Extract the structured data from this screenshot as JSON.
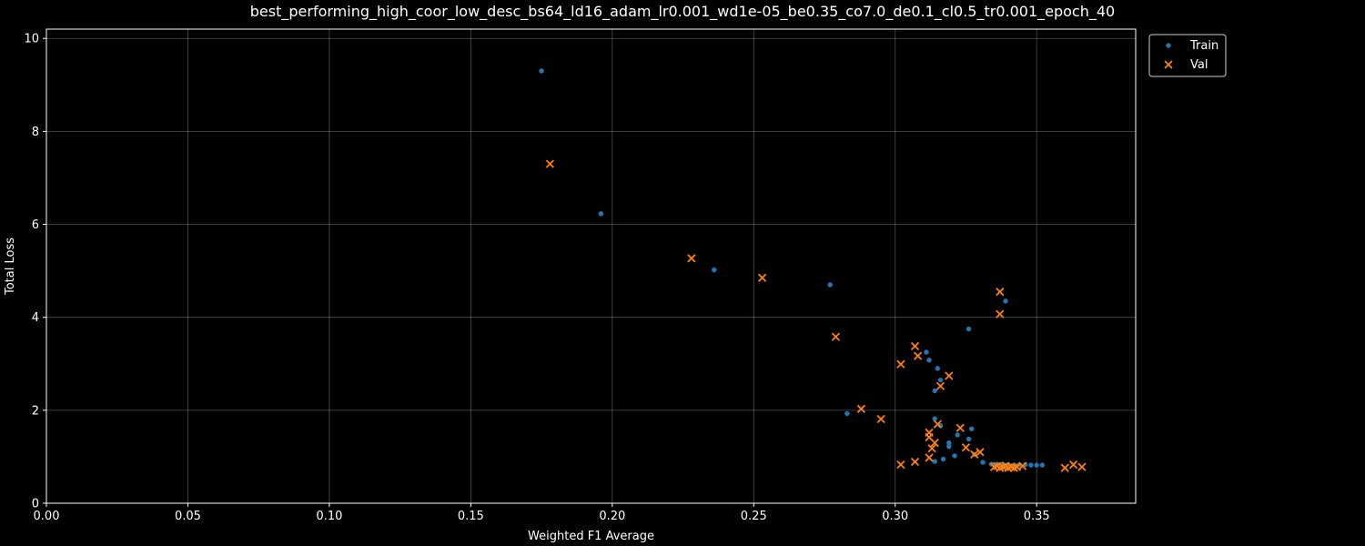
{
  "chart_data": {
    "type": "scatter",
    "title": "best_performing_high_coor_low_desc_bs64_ld16_adam_lr0.001_wd1e-05_be0.35_co7.0_de0.1_cl0.5_tr0.001_epoch_40",
    "xlabel": "Weighted F1 Average",
    "ylabel": "Total Loss",
    "xlim": [
      0.0,
      0.385
    ],
    "ylim": [
      0,
      10.2
    ],
    "x_ticks": [
      0.0,
      0.05,
      0.1,
      0.15,
      0.2,
      0.25,
      0.3,
      0.35
    ],
    "x_tick_labels": [
      "0.00",
      "0.05",
      "0.10",
      "0.15",
      "0.20",
      "0.25",
      "0.30",
      "0.35"
    ],
    "y_ticks": [
      0,
      2,
      4,
      6,
      8,
      10
    ],
    "y_tick_labels": [
      "0",
      "2",
      "4",
      "6",
      "8",
      "10"
    ],
    "grid": true,
    "legend_position": "outside-top-right",
    "background": "#000000",
    "series": [
      {
        "name": "Train",
        "marker": "dot",
        "color": "#1f77b4",
        "points": [
          [
            0.175,
            9.3
          ],
          [
            0.196,
            6.23
          ],
          [
            0.236,
            5.02
          ],
          [
            0.277,
            4.7
          ],
          [
            0.283,
            1.93
          ],
          [
            0.339,
            4.35
          ],
          [
            0.326,
            3.75
          ],
          [
            0.311,
            3.25
          ],
          [
            0.312,
            3.08
          ],
          [
            0.315,
            2.9
          ],
          [
            0.316,
            2.65
          ],
          [
            0.314,
            2.42
          ],
          [
            0.314,
            1.82
          ],
          [
            0.316,
            1.67
          ],
          [
            0.322,
            1.47
          ],
          [
            0.327,
            1.6
          ],
          [
            0.326,
            1.38
          ],
          [
            0.319,
            1.3
          ],
          [
            0.319,
            1.22
          ],
          [
            0.321,
            1.02
          ],
          [
            0.317,
            0.95
          ],
          [
            0.314,
            0.9
          ],
          [
            0.328,
            1.05
          ],
          [
            0.331,
            0.88
          ],
          [
            0.334,
            0.84
          ],
          [
            0.336,
            0.84
          ],
          [
            0.338,
            0.84
          ],
          [
            0.34,
            0.83
          ],
          [
            0.342,
            0.82
          ],
          [
            0.344,
            0.83
          ],
          [
            0.346,
            0.83
          ],
          [
            0.348,
            0.82
          ],
          [
            0.35,
            0.82
          ],
          [
            0.352,
            0.82
          ],
          [
            0.337,
            0.8
          ],
          [
            0.339,
            0.79
          ],
          [
            0.341,
            0.8
          ],
          [
            0.343,
            0.8
          ],
          [
            0.335,
            0.82
          ]
        ]
      },
      {
        "name": "Val",
        "marker": "x",
        "color": "#ff7f0e",
        "points": [
          [
            0.178,
            7.3
          ],
          [
            0.228,
            5.27
          ],
          [
            0.253,
            4.85
          ],
          [
            0.279,
            3.58
          ],
          [
            0.337,
            4.55
          ],
          [
            0.337,
            4.07
          ],
          [
            0.307,
            3.38
          ],
          [
            0.308,
            3.17
          ],
          [
            0.302,
            2.99
          ],
          [
            0.319,
            2.74
          ],
          [
            0.316,
            2.52
          ],
          [
            0.288,
            2.03
          ],
          [
            0.295,
            1.81
          ],
          [
            0.323,
            1.62
          ],
          [
            0.315,
            1.7
          ],
          [
            0.312,
            1.52
          ],
          [
            0.312,
            1.42
          ],
          [
            0.314,
            1.3
          ],
          [
            0.313,
            1.18
          ],
          [
            0.325,
            1.2
          ],
          [
            0.33,
            1.1
          ],
          [
            0.328,
            1.05
          ],
          [
            0.312,
            0.98
          ],
          [
            0.307,
            0.89
          ],
          [
            0.302,
            0.83
          ],
          [
            0.335,
            0.78
          ],
          [
            0.336,
            0.8
          ],
          [
            0.337,
            0.76
          ],
          [
            0.338,
            0.78
          ],
          [
            0.339,
            0.8
          ],
          [
            0.34,
            0.76
          ],
          [
            0.341,
            0.78
          ],
          [
            0.342,
            0.76
          ],
          [
            0.343,
            0.78
          ],
          [
            0.345,
            0.8
          ],
          [
            0.36,
            0.76
          ],
          [
            0.363,
            0.83
          ],
          [
            0.366,
            0.78
          ]
        ]
      }
    ]
  }
}
